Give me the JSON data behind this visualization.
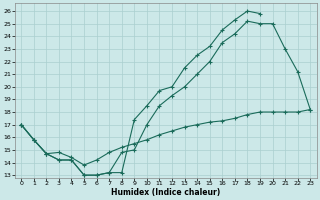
{
  "xlabel": "Humidex (Indice chaleur)",
  "bg_color": "#cce8e8",
  "line_color": "#1a6b5a",
  "grid_color": "#aacfcf",
  "xlim": [
    -0.5,
    23.5
  ],
  "ylim": [
    12.8,
    26.6
  ],
  "xticks": [
    0,
    1,
    2,
    3,
    4,
    5,
    6,
    7,
    8,
    9,
    10,
    11,
    12,
    13,
    14,
    15,
    16,
    17,
    18,
    19,
    20,
    21,
    22,
    23
  ],
  "yticks": [
    13,
    14,
    15,
    16,
    17,
    18,
    19,
    20,
    21,
    22,
    23,
    24,
    25,
    26
  ],
  "line1_x": [
    0,
    1,
    2,
    3,
    4,
    5,
    6,
    7,
    8,
    9,
    10,
    11,
    12,
    13,
    14,
    15,
    16,
    17,
    18,
    19,
    20,
    21,
    22,
    23
  ],
  "line1_y": [
    17.0,
    15.8,
    14.7,
    14.2,
    14.2,
    13.0,
    13.0,
    13.2,
    13.2,
    17.4,
    18.5,
    19.7,
    20.0,
    21.5,
    22.5,
    23.2,
    24.5,
    25.3,
    26.0,
    25.8,
    null,
    null,
    null,
    null
  ],
  "line2_x": [
    0,
    1,
    2,
    3,
    4,
    5,
    6,
    7,
    8,
    9,
    10,
    11,
    12,
    13,
    14,
    15,
    16,
    17,
    18,
    19,
    20,
    21,
    22,
    23
  ],
  "line2_y": [
    17.0,
    15.8,
    14.7,
    14.2,
    14.2,
    13.0,
    13.0,
    13.2,
    14.8,
    15.0,
    17.0,
    18.5,
    19.3,
    20.0,
    21.0,
    22.0,
    23.5,
    24.2,
    25.2,
    25.0,
    25.0,
    23.0,
    21.2,
    18.2
  ],
  "line3_x": [
    0,
    1,
    2,
    3,
    4,
    5,
    6,
    7,
    8,
    9,
    10,
    11,
    12,
    13,
    14,
    15,
    16,
    17,
    18,
    19,
    20,
    21,
    22,
    23
  ],
  "line3_y": [
    17.0,
    15.8,
    14.7,
    14.8,
    14.4,
    13.8,
    14.2,
    14.8,
    15.2,
    15.5,
    15.8,
    16.2,
    16.5,
    16.8,
    17.0,
    17.2,
    17.3,
    17.5,
    17.8,
    18.0,
    18.0,
    18.0,
    18.0,
    18.2
  ]
}
